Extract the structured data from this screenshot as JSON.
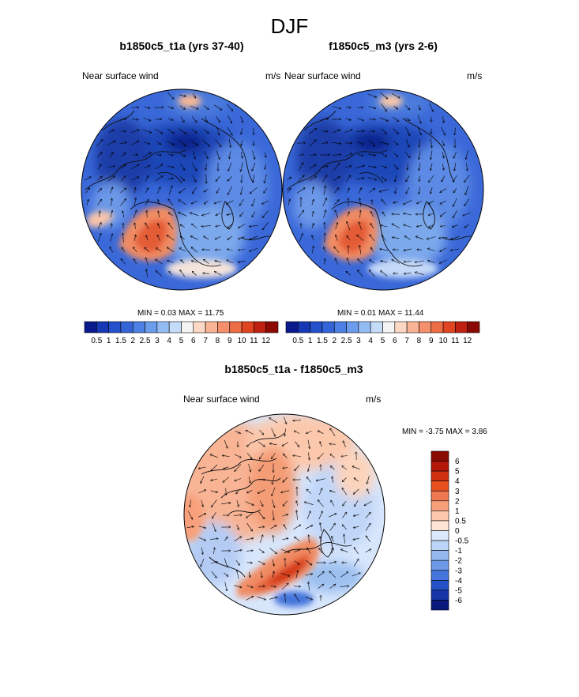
{
  "page_title": "DJF",
  "chart_data": [
    {
      "type": "polar-contour-map",
      "title": "b1850c5_t1a (yrs 37-40)",
      "left_label": "Near surface wind",
      "right_label": "m/s",
      "stats": {
        "min_label": "MIN =",
        "min": "0.03",
        "max_label": "MAX =",
        "max": "11.75"
      },
      "colorbar": {
        "orientation": "horizontal",
        "levels": [
          "0.5",
          "1",
          "1.5",
          "2",
          "2.5",
          "3",
          "4",
          "5",
          "6",
          "7",
          "8",
          "9",
          "10",
          "11",
          "12"
        ],
        "colors": [
          "#0a1a8c",
          "#1638b4",
          "#2450cc",
          "#3464d8",
          "#4c80e4",
          "#6c9cec",
          "#94bcf4",
          "#c4dcf8",
          "#f4f4f4",
          "#fcd8c4",
          "#f8b494",
          "#f4906c",
          "#ec6c44",
          "#e04420",
          "#c02010",
          "#8c0a04"
        ]
      }
    },
    {
      "type": "polar-contour-map",
      "title": "f1850c5_m3 (yrs 2-6)",
      "left_label": "Near surface wind",
      "right_label": "m/s",
      "stats": {
        "min_label": "MIN =",
        "min": "0.01",
        "max_label": "MAX =",
        "max": "11.44"
      },
      "colorbar": {
        "orientation": "horizontal",
        "levels": [
          "0.5",
          "1",
          "1.5",
          "2",
          "2.5",
          "3",
          "4",
          "5",
          "6",
          "7",
          "8",
          "9",
          "10",
          "11",
          "12"
        ],
        "colors": [
          "#0a1a8c",
          "#1638b4",
          "#2450cc",
          "#3464d8",
          "#4c80e4",
          "#6c9cec",
          "#94bcf4",
          "#c4dcf8",
          "#f4f4f4",
          "#fcd8c4",
          "#f8b494",
          "#f4906c",
          "#ec6c44",
          "#e04420",
          "#c02010",
          "#8c0a04"
        ]
      }
    },
    {
      "type": "polar-contour-map",
      "title": "b1850c5_t1a - f1850c5_m3",
      "left_label": "Near surface wind",
      "right_label": "m/s",
      "stats": {
        "min_label": "MIN =",
        "min": "-3.75",
        "max_label": "MAX =",
        "max": "3.86"
      },
      "colorbar": {
        "orientation": "vertical",
        "levels": [
          "6",
          "5",
          "4",
          "3",
          "2",
          "1",
          "0.5",
          "0",
          "-0.5",
          "-1",
          "-2",
          "-3",
          "-4",
          "-5",
          "-6"
        ],
        "colors": [
          "#8c0a04",
          "#b41808",
          "#d03010",
          "#e85020",
          "#f07850",
          "#f8a07c",
          "#fcc8ac",
          "#fde4d4",
          "#dce8fc",
          "#bcd4f8",
          "#94b8f0",
          "#6c98e8",
          "#4474dc",
          "#2450c8",
          "#1434a8",
          "#0a1a7c"
        ]
      }
    }
  ],
  "colors": {
    "outline": "#000000",
    "coast": "#101010"
  }
}
